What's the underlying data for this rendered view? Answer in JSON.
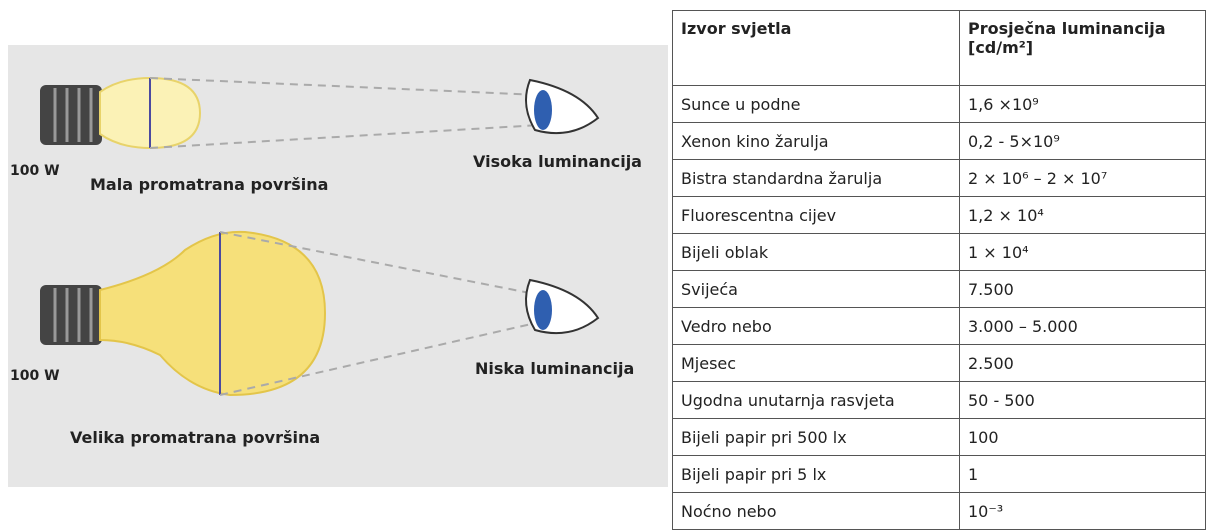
{
  "diagram": {
    "small": {
      "power": "100 W",
      "label": "Mala promatrana površina",
      "eye_label": "Visoka luminancija"
    },
    "large": {
      "power": "100 W",
      "label": "Velika promatrana površina",
      "eye_label": "Niska luminancija"
    }
  },
  "table": {
    "header": [
      "Izvor svjetla",
      "Prosječna luminancija [cd/m²]"
    ],
    "rows": [
      [
        "Sunce u podne",
        "1,6 ×10⁹"
      ],
      [
        "Xenon kino žarulja",
        "0,2 - 5×10⁹"
      ],
      [
        "Bistra standardna žarulja",
        "2 × 10⁶ – 2 × 10⁷"
      ],
      [
        "Fluorescentna cijev",
        "1,2 × 10⁴"
      ],
      [
        "Bijeli oblak",
        "1 × 10⁴"
      ],
      [
        "Svijeća",
        "7.500"
      ],
      [
        "Vedro nebo",
        "3.000 – 5.000"
      ],
      [
        "Mjesec",
        "2.500"
      ],
      [
        "Ugodna unutarnja rasvjeta",
        "50 - 500"
      ],
      [
        "Bijeli papir pri 500 lx",
        "100"
      ],
      [
        "Bijeli papir pri 5 lx",
        "1"
      ],
      [
        "Noćno nebo",
        "10⁻³"
      ]
    ]
  }
}
